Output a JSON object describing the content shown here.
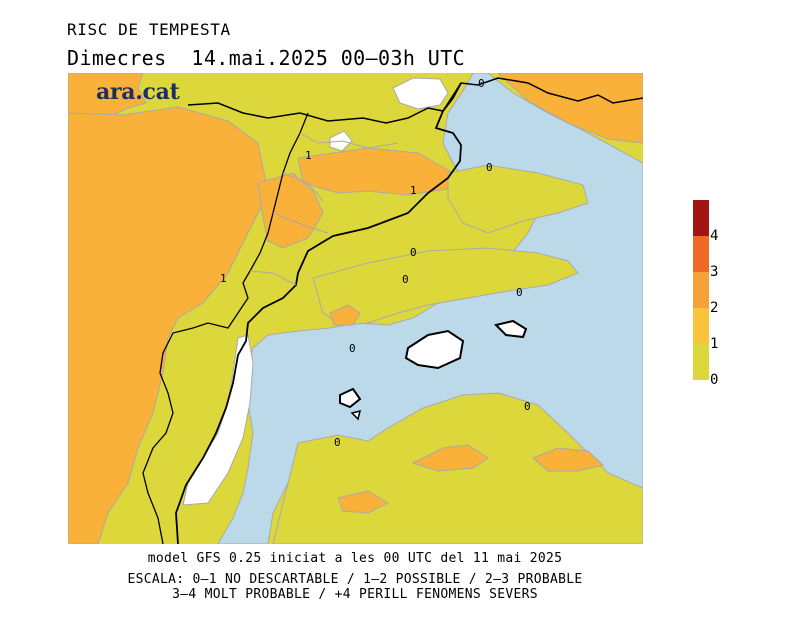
{
  "header": {
    "title": "RISC DE TEMPESTA",
    "subtitle": "Dimecres  14.mai.2025 00–03h UTC"
  },
  "logo": {
    "text": "ara.cat"
  },
  "map": {
    "contour_labels": [
      "0",
      "0",
      "0",
      "0",
      "0",
      "0",
      "0",
      "0",
      "1",
      "1",
      "1"
    ]
  },
  "legend": {
    "levels": [
      {
        "label": "0",
        "color": "#dcd83c"
      },
      {
        "label": "1",
        "color": "#f7c43b"
      },
      {
        "label": "2",
        "color": "#f5a238"
      },
      {
        "label": "3",
        "color": "#ee6a25"
      },
      {
        "label": "4",
        "color": "#a31414"
      }
    ],
    "water_color": "#bcd9ea",
    "land_level2_color": "#f9b13a"
  },
  "footer": {
    "model_line": "model GFS 0.25 iniciat a les 00 UTC del 11 mai 2025",
    "scale_line1": "ESCALA: 0–1 NO DESCARTABLE / 1–2 POSSIBLE / 2–3 PROBABLE",
    "scale_line2": "3–4 MOLT PROBABLE / +4 PERILL FENOMENS SEVERS"
  }
}
